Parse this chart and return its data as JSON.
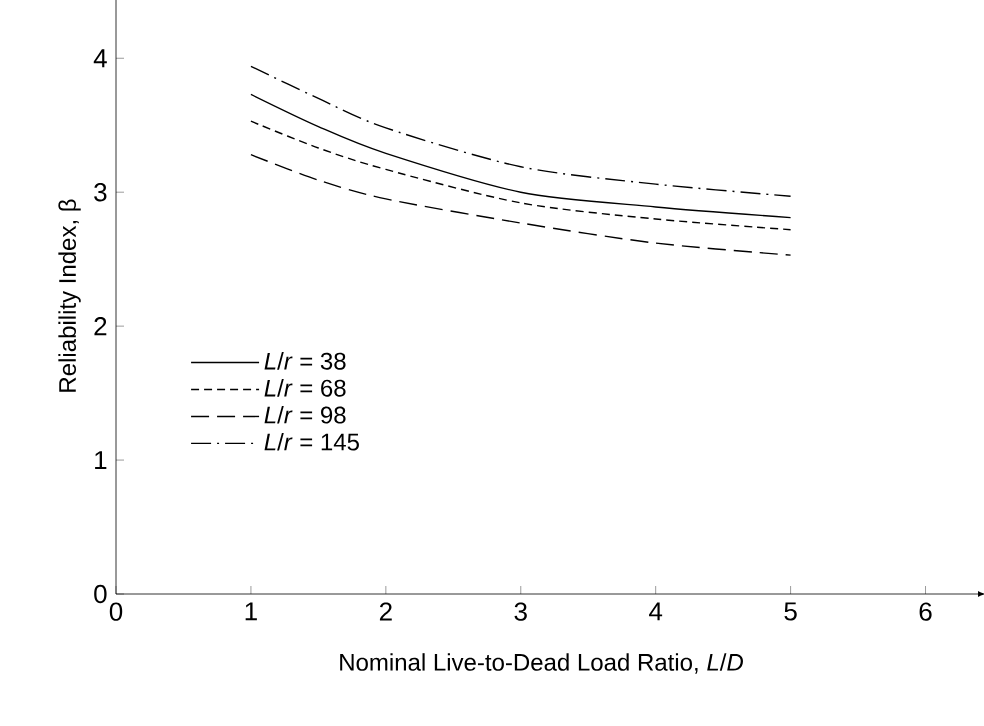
{
  "chart_data": {
    "type": "line",
    "xlabel": "Nominal Live-to-Dead Load Ratio, *L*/*D*",
    "ylabel": "Reliability Index, β",
    "x": [
      1,
      1.5,
      2,
      3,
      4,
      5
    ],
    "series": [
      {
        "name": "*L*/*r* = 38",
        "color": "#000000",
        "line_style": "solid",
        "values": [
          3.73,
          3.49,
          3.29,
          3.0,
          2.89,
          2.81
        ]
      },
      {
        "name": "*L*/*r* = 68",
        "color": "#000000",
        "line_style": "dashed",
        "values": [
          3.53,
          3.33,
          3.17,
          2.92,
          2.8,
          2.72
        ]
      },
      {
        "name": "*L*/*r* = 98",
        "color": "#000000",
        "line_style": "longdashed",
        "values": [
          3.28,
          3.09,
          2.95,
          2.77,
          2.62,
          2.53
        ]
      },
      {
        "name": "*L*/*r* = 145",
        "color": "#000000",
        "line_style": "dashdot",
        "values": [
          3.94,
          3.7,
          3.48,
          3.19,
          3.06,
          2.97
        ]
      }
    ],
    "xlim": [
      0,
      6.3
    ],
    "ylim": [
      0,
      4.45
    ],
    "xticks": [
      0,
      1,
      2,
      3,
      4,
      5,
      6
    ],
    "yticks": [
      0,
      1,
      2,
      3,
      4
    ],
    "grid": false,
    "legend": "bottom left",
    "marker": "none"
  }
}
